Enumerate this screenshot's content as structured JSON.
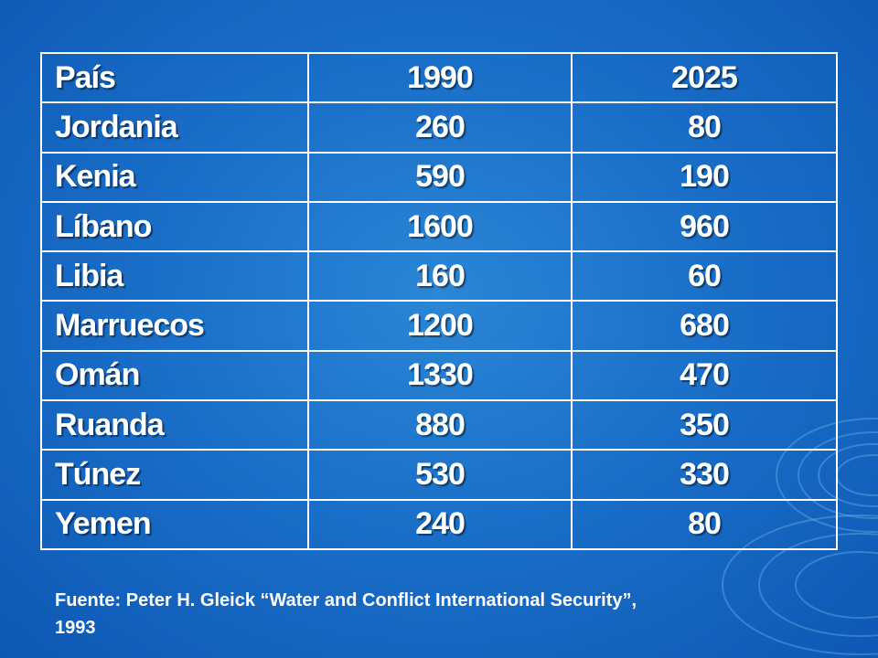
{
  "table": {
    "header": {
      "country": "País",
      "year_a": "1990",
      "year_b": "2025"
    },
    "rows": [
      {
        "country": "Jordania",
        "year_a": "260",
        "year_b": "80"
      },
      {
        "country": "Kenia",
        "year_a": "590",
        "year_b": "190"
      },
      {
        "country": "Líbano",
        "year_a": "1600",
        "year_b": "960"
      },
      {
        "country": "Libia",
        "year_a": "160",
        "year_b": "60"
      },
      {
        "country": "Marruecos",
        "year_a": "1200",
        "year_b": "680"
      },
      {
        "country": "Omán",
        "year_a": "1330",
        "year_b": "470"
      },
      {
        "country": "Ruanda",
        "year_a": "880",
        "year_b": "350"
      },
      {
        "country": "Túnez",
        "year_a": "530",
        "year_b": "330"
      },
      {
        "country": "Yemen",
        "year_a": "240",
        "year_b": "80"
      }
    ]
  },
  "source": {
    "line1": "Fuente:  Peter H. Gleick “Water and Conflict International Security”,",
    "line2": "1993"
  },
  "colors": {
    "background": "#1a6fc8",
    "text": "#ffffff",
    "border": "#ffffff"
  }
}
